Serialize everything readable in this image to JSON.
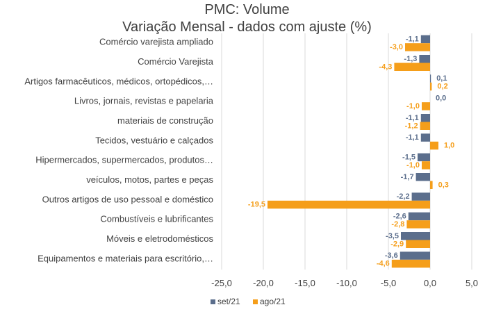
{
  "chart_data": {
    "type": "bar",
    "orientation": "horizontal",
    "title": [
      "PMC: Volume",
      "Variação Mensal - dados com ajuste (%)"
    ],
    "categories": [
      "Comércio varejista ampliado",
      "Comércio Varejista",
      "Artigos farmacêuticos, médicos, ortopédicos,…",
      "Livros, jornais, revistas e papelaria",
      "materiais de construção",
      "Tecidos, vestuário e calçados",
      "Hipermercados, supermercados, produtos…",
      "veículos, motos, partes e peças",
      "Outros artigos de uso pessoal e doméstico",
      "Combustíveis e lubrificantes",
      "Móveis e eletrodomésticos",
      "Equipamentos e materiais para escritório,…"
    ],
    "series": [
      {
        "name": "set/21",
        "color": "#5b6e8c",
        "values": [
          -1.1,
          -1.3,
          0.1,
          0.0,
          -1.1,
          -1.1,
          -1.5,
          -1.7,
          -2.2,
          -2.6,
          -3.5,
          -3.6
        ],
        "labels": [
          "-1,1",
          "-1,3",
          "0,1",
          "0,0",
          "-1,1",
          "-1,1",
          "-1,5",
          "-1,7",
          "-2,2",
          "-2,6",
          "-3,5",
          "-3,6"
        ]
      },
      {
        "name": "ago/21",
        "color": "#f59e1a",
        "values": [
          -3.0,
          -4.3,
          0.2,
          -1.0,
          -1.2,
          1.0,
          -1.0,
          0.3,
          -19.5,
          -2.8,
          -2.9,
          -4.6
        ],
        "labels": [
          "-3,0",
          "-4,3",
          "0,2",
          "-1,0",
          "-1,2",
          "1,0",
          "-1,0",
          "0,3",
          "-19,5",
          "-2,8",
          "-2,9",
          "-4,6"
        ]
      }
    ],
    "xlim": [
      -25,
      5
    ],
    "xticks": [
      -25,
      -20,
      -15,
      -10,
      -5,
      0,
      5
    ],
    "xtick_labels": [
      "-25,0",
      "-20,0",
      "-15,0",
      "-10,0",
      "-5,0",
      "0,0",
      "5,0"
    ],
    "grid": "vertical",
    "legend_position": "bottom-left"
  }
}
